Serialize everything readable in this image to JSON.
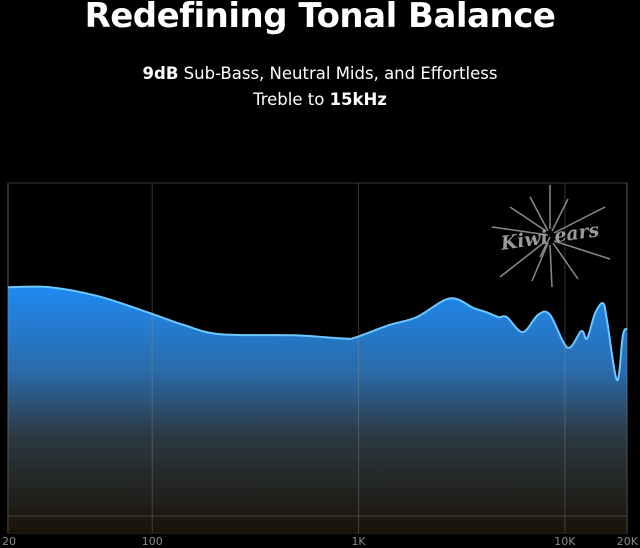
{
  "header": {
    "title": "Redefining Tonal Balance",
    "subtitle_line1_bold": "9dB",
    "subtitle_line1_rest": " Sub-Bass, Neutral Mids, and Effortless",
    "subtitle_line2_rest": "Treble to ",
    "subtitle_line2_bold": "15kHz"
  },
  "logo": {
    "text": "Kiwi ears"
  },
  "chart_data": {
    "type": "area",
    "title": "",
    "xlabel": "",
    "ylabel": "",
    "x_scale": "log",
    "xlim": [
      20,
      20000
    ],
    "ylim": [
      -37,
      28.5
    ],
    "x_ticks": [
      {
        "value": 20,
        "label": "20"
      },
      {
        "value": 100,
        "label": "100"
      },
      {
        "value": 1000,
        "label": "1K"
      },
      {
        "value": 10000,
        "label": "10K"
      },
      {
        "value": 20000,
        "label": "20K"
      }
    ],
    "grid": true,
    "colors": {
      "fill_top": "#1e8af2",
      "fill_bottom": "#1a1206",
      "line": "#6cc8ff",
      "grid": "#4a4a4a"
    },
    "series": [
      {
        "x": [
          20,
          32,
          55,
          95,
          143,
          214,
          489,
          846,
          966,
          1400,
          1912,
          2770,
          3610,
          4180,
          4780,
          5230,
          6250,
          7400,
          8450,
          10300,
          12000,
          12800,
          14000,
          15300,
          16000,
          17900,
          19100,
          20000
        ],
        "y": [
          9.0,
          9.0,
          7.3,
          4.3,
          1.9,
          0.2,
          0,
          -0.6,
          -0.4,
          1.9,
          3.4,
          6.9,
          5.1,
          4.3,
          3.4,
          3.4,
          0.6,
          3.8,
          3.9,
          -2.3,
          0.8,
          -0.6,
          4.1,
          6.0,
          2.8,
          -8.4,
          0,
          1.3
        ]
      }
    ]
  }
}
